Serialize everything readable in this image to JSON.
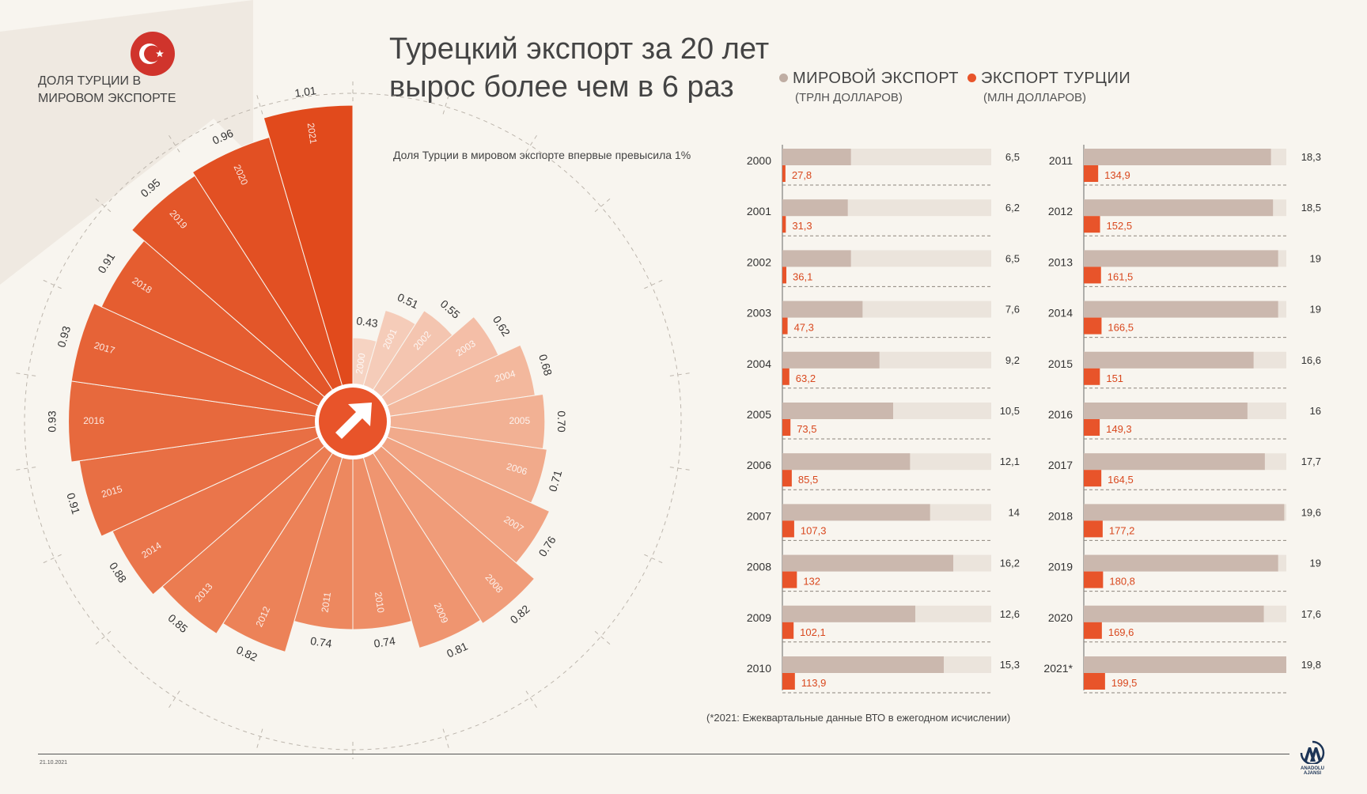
{
  "header": {
    "share_title": "ДОЛЯ ТУРЦИИ В МИРОВОМ ЭКСПОРТЕ",
    "main_title_line1": "Турецкий экспорт за 20 лет",
    "main_title_line2": "вырос более чем в 6 раз",
    "radial_note": "Доля Турции в мировом экспорте впервые превысила 1%"
  },
  "legend": {
    "world_label": "МИРОВОЙ ЭКСПОРТ",
    "world_unit": "(ТРЛН ДОЛЛАРОВ)",
    "turkey_label": "ЭКСПОРТ ТУРЦИИ",
    "turkey_unit": "(МЛН ДОЛЛАРОВ)"
  },
  "footer": {
    "footnote": "(*2021: Ежеквартальные данные ВТО в ежегодном исчислении)",
    "date": "21.10.2021",
    "agency": "ANADOLU AJANSI"
  },
  "colors": {
    "background": "#f8f5ef",
    "accent": "#e8542a",
    "world_bar": "#cbb8ae",
    "world_track": "#ebe4dc",
    "flag_red": "#d0342c"
  },
  "icons": [
    "turkey-flag-icon",
    "arrow-up-right-icon",
    "anadolu-logo-icon"
  ],
  "chart_data": [
    {
      "type": "radial-bar",
      "title": "ДОЛЯ ТУРЦИИ В МИРОВОМ ЭКСПОРТЕ",
      "categories": [
        "2000",
        "2001",
        "2002",
        "2003",
        "2004",
        "2005",
        "2006",
        "2007",
        "2008",
        "2009",
        "2010",
        "2011",
        "2012",
        "2013",
        "2014",
        "2015",
        "2016",
        "2017",
        "2018",
        "2019",
        "2020",
        "2021"
      ],
      "values": [
        0.43,
        0.51,
        0.55,
        0.62,
        0.68,
        0.7,
        0.71,
        0.76,
        0.82,
        0.81,
        0.74,
        0.74,
        0.82,
        0.85,
        0.88,
        0.91,
        0.93,
        0.93,
        0.91,
        0.95,
        0.96,
        1.01
      ],
      "value_labels": [
        "0.43",
        "0.51",
        "0.55",
        "0.62",
        "0.68",
        "0.70",
        "0.71",
        "0.76",
        "0.82",
        "0.81",
        "0.74",
        "0.74",
        "0.82",
        "0.85",
        "0.88",
        "0.91",
        "0.93",
        "0.93",
        "0.91",
        "0.95",
        "0.96",
        "1.01"
      ],
      "unit": "%"
    },
    {
      "type": "bar",
      "categories": [
        "2000",
        "2001",
        "2002",
        "2003",
        "2004",
        "2005",
        "2006",
        "2007",
        "2008",
        "2009",
        "2010",
        "2011",
        "2012",
        "2013",
        "2014",
        "2015",
        "2016",
        "2017",
        "2018",
        "2019",
        "2020",
        "2021*"
      ],
      "series": [
        {
          "name": "МИРОВОЙ ЭКСПОРТ (ТРЛН ДОЛЛАРОВ)",
          "values": [
            6.5,
            6.2,
            6.5,
            7.6,
            9.2,
            10.5,
            12.1,
            14,
            16.2,
            12.6,
            15.3,
            18.3,
            18.5,
            19,
            19,
            16.6,
            16,
            17.7,
            19.6,
            19,
            17.6,
            19.8
          ],
          "labels": [
            "6,5",
            "6,2",
            "6,5",
            "7,6",
            "9,2",
            "10,5",
            "12,1",
            "14",
            "16,2",
            "12,6",
            "15,3",
            "18,3",
            "18,5",
            "19",
            "19",
            "16,6",
            "16",
            "17,7",
            "19,6",
            "19",
            "17,6",
            "19,8"
          ]
        },
        {
          "name": "ЭКСПОРТ ТУРЦИИ (МЛН ДОЛЛАРОВ)",
          "values": [
            27.8,
            31.3,
            36.1,
            47.3,
            63.2,
            73.5,
            85.5,
            107.3,
            132,
            102.1,
            113.9,
            134.9,
            152.5,
            161.5,
            166.5,
            151,
            149.3,
            164.5,
            177.2,
            180.8,
            169.6,
            199.5
          ],
          "labels": [
            "27,8",
            "31,3",
            "36,1",
            "47,3",
            "63,2",
            "73,5",
            "85,5",
            "107,3",
            "132",
            "102,1",
            "113,9",
            "134,9",
            "152,5",
            "161,5",
            "166,5",
            "151",
            "149,3",
            "164,5",
            "177,2",
            "180,8",
            "169,6",
            "199,5"
          ]
        }
      ],
      "world_scale_max": 19.8,
      "turkey_scale_max": 1900
    }
  ]
}
